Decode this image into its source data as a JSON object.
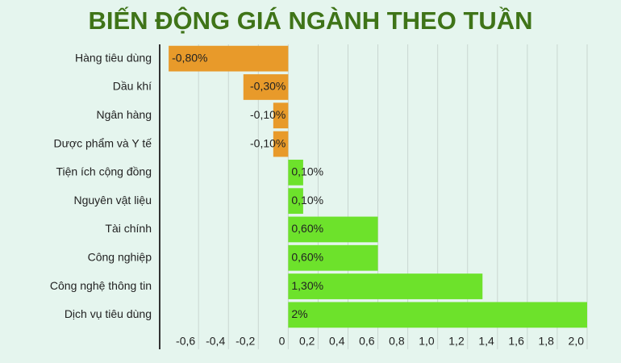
{
  "chart_data": {
    "type": "hbar",
    "title": "BIẾN ĐỘNG GIÁ NGÀNH THEO TUẦN",
    "categories": [
      "Hàng tiêu dùng",
      "Dầu khí",
      "Ngân hàng",
      "Dược phẩm và Y tế",
      "Tiện ích cộng đồng",
      "Nguyên vật liệu",
      "Tài chính",
      "Công nghiệp",
      "Công nghệ thông tin",
      "Dịch vụ tiêu dùng"
    ],
    "values": [
      -0.8,
      -0.3,
      -0.1,
      -0.1,
      0.1,
      0.1,
      0.6,
      0.6,
      1.3,
      2
    ],
    "value_labels": [
      "-0,80%",
      "-0,30%",
      "-0,10%",
      "-0,10%",
      "0,10%",
      "0,10%",
      "0,60%",
      "0,60%",
      "1,30%",
      "2%"
    ],
    "colors": [
      "#e89a2a",
      "#e89a2a",
      "#e89a2a",
      "#e89a2a",
      "#6de22b",
      "#6de22b",
      "#6de22b",
      "#6de22b",
      "#6de22b",
      "#6de22b"
    ],
    "xlim": [
      -0.86,
      2.0
    ],
    "xticks": [
      {
        "value": -0.6,
        "label": "-0,6"
      },
      {
        "value": -0.4,
        "label": "-0,4"
      },
      {
        "value": -0.2,
        "label": "-0,2"
      },
      0,
      {
        "value": 0.2,
        "label": "0,2"
      },
      {
        "value": 0.4,
        "label": "0,4"
      },
      {
        "value": 0.6,
        "label": "0,6"
      },
      {
        "value": 0.8,
        "label": "0,8"
      },
      {
        "value": 1.0,
        "label": "1,0"
      },
      {
        "value": 1.2,
        "label": "1,2"
      },
      {
        "value": 1.4,
        "label": "1,4"
      },
      {
        "value": 1.6,
        "label": "1,6"
      },
      {
        "value": 1.8,
        "label": "1,8"
      },
      {
        "value": 2.0,
        "label": "2,0"
      }
    ],
    "grid": true
  }
}
